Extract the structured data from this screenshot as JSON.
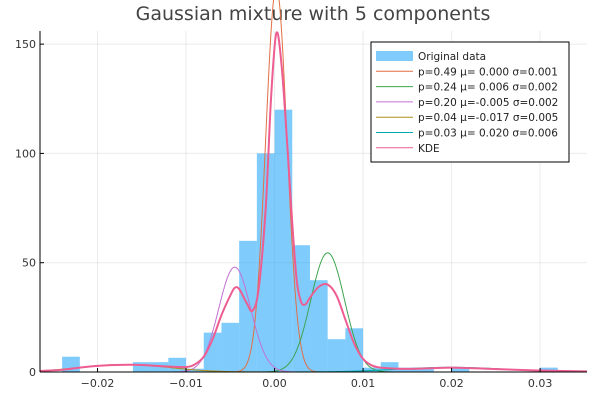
{
  "chart_data": {
    "type": "bar",
    "title": "Gaussian mixture with 5 components",
    "xlabel": "",
    "ylabel": "",
    "xlim": [
      -0.0265,
      0.0353
    ],
    "ylim": [
      0,
      156
    ],
    "grid": true,
    "legend_position": "top-right",
    "x_ticks": [
      -0.02,
      -0.01,
      0.0,
      0.01,
      0.02,
      0.03
    ],
    "x_tick_labels": [
      "−0.02",
      "−0.01",
      "0.00",
      "0.01",
      "0.02",
      "0.03"
    ],
    "y_ticks": [
      0,
      50,
      100,
      150
    ],
    "y_tick_labels": [
      "0",
      "50",
      "100",
      "150"
    ],
    "histogram": {
      "name": "Original data",
      "color": "#009AFA",
      "opacity": 0.5,
      "bin_edges": [
        -0.024,
        -0.022,
        -0.02,
        -0.018,
        -0.016,
        -0.014,
        -0.012,
        -0.01,
        -0.008,
        -0.006,
        -0.004,
        -0.002,
        0.0,
        0.002,
        0.004,
        0.006,
        0.008,
        0.01,
        0.012,
        0.014,
        0.016,
        0.018,
        0.02,
        0.022,
        0.024,
        0.026,
        0.028,
        0.03,
        0.032
      ],
      "heights": [
        7,
        0,
        0,
        0,
        4.5,
        4.5,
        6.5,
        1.5,
        18,
        22.5,
        60,
        100,
        120,
        58,
        42,
        15,
        20,
        2,
        4.5,
        2,
        1.5,
        0,
        2,
        0,
        0,
        0,
        0,
        2
      ]
    },
    "components": [
      {
        "name": "p=0.49 μ= 0.000 σ=0.001",
        "color": "#E26F46",
        "p": 0.49,
        "mu": 0.0002,
        "sigma": 0.0012
      },
      {
        "name": "p=0.24 μ= 0.006 σ=0.002",
        "color": "#3EA44E",
        "p": 0.24,
        "mu": 0.006,
        "sigma": 0.0019
      },
      {
        "name": "p=0.20 μ=-0.005 σ=0.002",
        "color": "#C271D2",
        "p": 0.2,
        "mu": -0.0045,
        "sigma": 0.0018
      },
      {
        "name": "p=0.04 μ=-0.017 σ=0.005",
        "color": "#AC8D18",
        "p": 0.04,
        "mu": -0.017,
        "sigma": 0.005
      },
      {
        "name": "p=0.03 μ= 0.020 σ=0.006",
        "color": "#00A9AD",
        "p": 0.03,
        "mu": 0.02,
        "sigma": 0.006
      }
    ],
    "kde": {
      "name": "KDE",
      "color": "#ED5D92",
      "points": [
        [
          -0.0265,
          0.5
        ],
        [
          -0.024,
          1
        ],
        [
          -0.022,
          2
        ],
        [
          -0.02,
          2.8
        ],
        [
          -0.018,
          3.2
        ],
        [
          -0.016,
          3.3
        ],
        [
          -0.014,
          3
        ],
        [
          -0.012,
          2.5
        ],
        [
          -0.01,
          2.3
        ],
        [
          -0.009,
          3.5
        ],
        [
          -0.008,
          7
        ],
        [
          -0.007,
          15
        ],
        [
          -0.006,
          26
        ],
        [
          -0.005,
          35
        ],
        [
          -0.0045,
          38.5
        ],
        [
          -0.004,
          38
        ],
        [
          -0.0032,
          32
        ],
        [
          -0.0025,
          28
        ],
        [
          -0.0018,
          38
        ],
        [
          -0.001,
          75
        ],
        [
          -0.0004,
          125
        ],
        [
          0.0002,
          155
        ],
        [
          0.0008,
          140
        ],
        [
          0.0015,
          100
        ],
        [
          0.002,
          68
        ],
        [
          0.0025,
          42
        ],
        [
          0.003,
          32
        ],
        [
          0.0035,
          31
        ],
        [
          0.004,
          34
        ],
        [
          0.005,
          39
        ],
        [
          0.006,
          40
        ],
        [
          0.007,
          35
        ],
        [
          0.008,
          24
        ],
        [
          0.009,
          13
        ],
        [
          0.01,
          6
        ],
        [
          0.011,
          3
        ],
        [
          0.012,
          2
        ],
        [
          0.014,
          1.5
        ],
        [
          0.016,
          1.5
        ],
        [
          0.018,
          1.8
        ],
        [
          0.02,
          2
        ],
        [
          0.022,
          1.8
        ],
        [
          0.024,
          1.5
        ],
        [
          0.026,
          1.2
        ],
        [
          0.028,
          0.9
        ],
        [
          0.03,
          0.7
        ],
        [
          0.032,
          0.5
        ],
        [
          0.0353,
          0.3
        ]
      ]
    }
  }
}
